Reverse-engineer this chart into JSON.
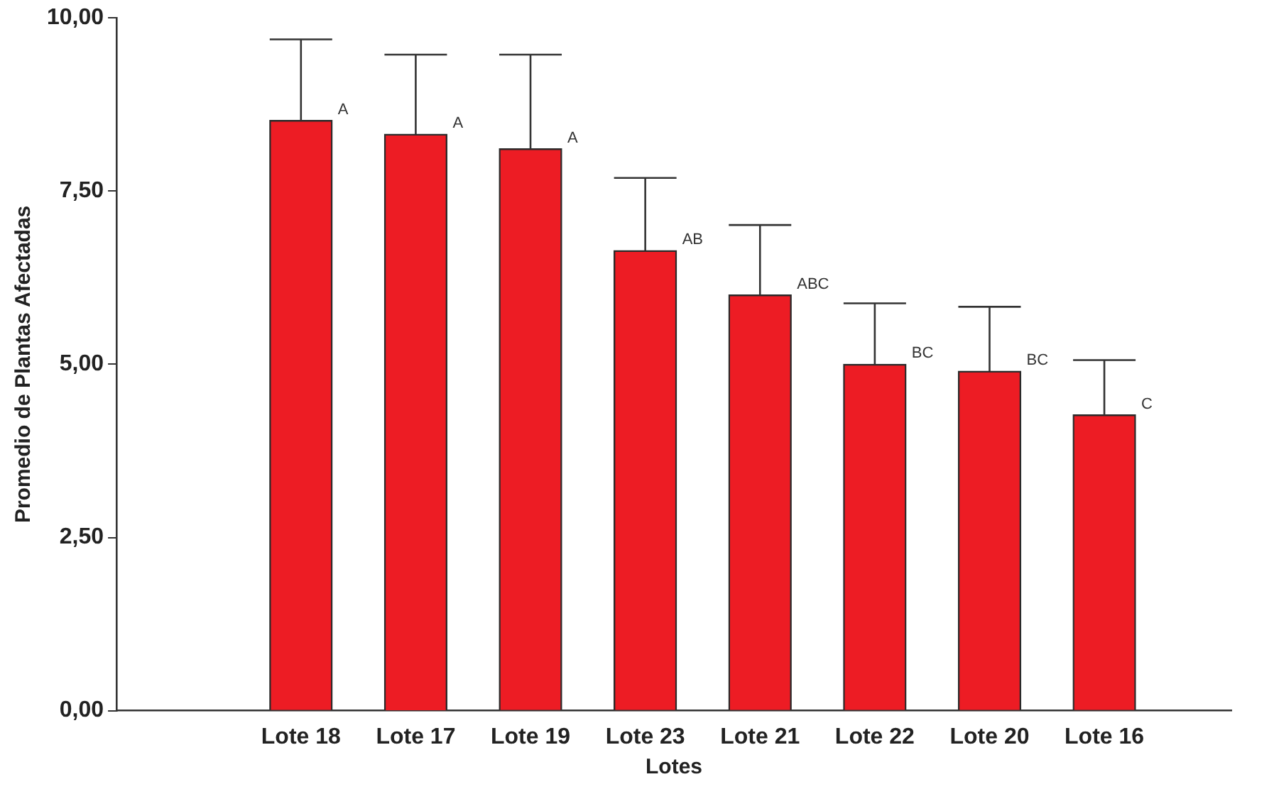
{
  "chart_data": {
    "type": "bar",
    "xlabel": "Lotes",
    "ylabel": "Promedio de Plantas Afectadas",
    "categories": [
      "Lote 18",
      "Lote 17",
      "Lote 19",
      "Lote 23",
      "Lote 21",
      "Lote 22",
      "Lote 20",
      "Lote 16"
    ],
    "values": [
      8.52,
      8.32,
      8.11,
      6.64,
      6.0,
      5.0,
      4.9,
      4.27
    ],
    "errors": [
      [
        8.52,
        9.69
      ],
      [
        8.32,
        9.47
      ],
      [
        8.11,
        9.47
      ],
      [
        6.64,
        7.69
      ],
      [
        6.0,
        7.01
      ],
      [
        5.0,
        5.88
      ],
      [
        4.9,
        5.83
      ],
      [
        4.27,
        5.06
      ]
    ],
    "color": "#ed1c24",
    "ylim": [
      0,
      10
    ],
    "yticks": [
      {
        "value": 0,
        "label": "0,00"
      },
      {
        "value": 2.5,
        "label": "2,50"
      },
      {
        "value": 5,
        "label": "5,00"
      },
      {
        "value": 7.5,
        "label": "7,50"
      },
      {
        "value": 10,
        "label": "10,00"
      }
    ],
    "annotations": [
      {
        "text": "A",
        "x": "Lote 18",
        "y": 8.52
      },
      {
        "text": "A",
        "x": "Lote 17",
        "y": 8.32
      },
      {
        "text": "A",
        "x": "Lote 19",
        "y": 8.11
      },
      {
        "text": "AB",
        "x": "Lote 23",
        "y": 6.64
      },
      {
        "text": "ABC",
        "x": "Lote 21",
        "y": 6.0
      },
      {
        "text": "BC",
        "x": "Lote 22",
        "y": 5.0
      },
      {
        "text": "BC",
        "x": "Lote 20",
        "y": 4.9
      },
      {
        "text": "C",
        "x": "Lote 16",
        "y": 4.27
      }
    ]
  }
}
